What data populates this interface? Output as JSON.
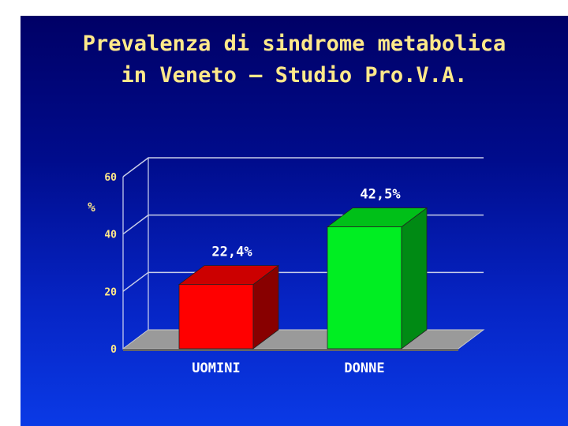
{
  "slide": {
    "title_line1": "Prevalenza di sindrome metabolica",
    "title_line2": "in Veneto – Studio Pro.V.A."
  },
  "chart_data": {
    "type": "bar",
    "title": "Prevalenza di sindrome metabolica in Veneto – Studio Pro.V.A.",
    "ylabel": "%",
    "xlabel": "",
    "categories": [
      "UOMINI",
      "DONNE"
    ],
    "values": [
      22.4,
      42.5
    ],
    "data_labels": [
      "22,4%",
      "42,5%"
    ],
    "bar_colors": [
      "#ff0000",
      "#00ee22"
    ],
    "ylim": [
      0,
      60
    ],
    "yticks": [
      0,
      20,
      40,
      60
    ],
    "grid": true,
    "three_d": true,
    "legend": "none"
  }
}
